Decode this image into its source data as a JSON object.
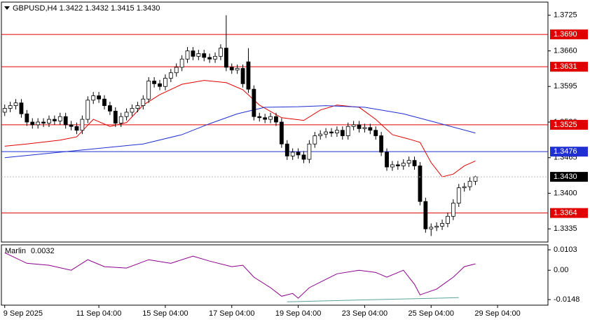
{
  "chart_data": {
    "type": "candlestick",
    "title": "GBPUSD,H4  1.3422 1.3432 1.3415 1.3430",
    "xlim": [
      -0.6,
      98.1
    ],
    "ylim": [
      1.3311,
      1.3749
    ],
    "yticks": [
      1.3725,
      {
        "value": 1.366,
        "label": "1.3660"
      },
      1.3595,
      {
        "value": 1.353,
        "label": "1.3530"
      },
      1.3465,
      {
        "value": 1.34,
        "label": "1.3400"
      },
      1.3335
    ],
    "xticks": [
      {
        "value": 0,
        "label": "9 Sep 2025"
      },
      {
        "value": 17,
        "label": "11 Sep 04:00"
      },
      {
        "value": 29,
        "label": "15 Sep 04:00"
      },
      {
        "value": 41,
        "label": "17 Sep 04:00"
      },
      {
        "value": 53,
        "label": "19 Sep 04:00"
      },
      {
        "value": 65,
        "label": "23 Sep 04:00"
      },
      {
        "value": 77,
        "label": "25 Sep 04:00"
      },
      {
        "value": 89,
        "label": "29 Sep 04:00"
      }
    ],
    "open": [
      1.3548,
      1.3555,
      1.356,
      1.3565,
      1.3545,
      1.353,
      1.3525,
      1.353,
      1.3528,
      1.3535,
      1.3532,
      1.354,
      1.3525,
      1.3522,
      1.3515,
      1.3535,
      1.357,
      1.3578,
      1.3572,
      1.356,
      1.355,
      1.3528,
      1.354,
      1.3548,
      1.3555,
      1.356,
      1.3572,
      1.3605,
      1.36,
      1.3595,
      1.361,
      1.362,
      1.363,
      1.3645,
      1.366,
      1.365,
      1.3655,
      1.3648,
      1.3645,
      1.365,
      1.3665,
      1.363,
      1.3625,
      1.3628,
      1.364,
      1.359,
      1.354,
      1.3538,
      1.3535,
      1.354,
      1.353,
      1.349,
      1.3468,
      1.3475,
      1.347,
      1.3462,
      1.349,
      1.3505,
      1.3508,
      1.3512,
      1.351,
      1.3515,
      1.3505,
      1.3522,
      1.3525,
      1.3518,
      1.352,
      1.3515,
      1.3505,
      1.3475,
      1.3448,
      1.3452,
      1.345,
      1.3455,
      1.346,
      1.345,
      1.3385,
      1.3335,
      1.3338,
      1.334,
      1.3345,
      1.3358,
      1.3382,
      1.341,
      1.3412,
      1.3422
    ],
    "high": [
      1.3562,
      1.3567,
      1.3572,
      1.3572,
      1.3552,
      1.3537,
      1.3537,
      1.3537,
      1.3542,
      1.3542,
      1.3547,
      1.3547,
      1.3532,
      1.3529,
      1.3542,
      1.3577,
      1.3585,
      1.3585,
      1.3579,
      1.3567,
      1.3557,
      1.3547,
      1.3555,
      1.3562,
      1.3567,
      1.3579,
      1.3612,
      1.3612,
      1.3607,
      1.3617,
      1.3627,
      1.3637,
      1.3652,
      1.3667,
      1.3667,
      1.3662,
      1.3662,
      1.3655,
      1.3657,
      1.3672,
      1.3725,
      1.3637,
      1.3635,
      1.3635,
      1.3665,
      1.3597,
      1.3547,
      1.3545,
      1.3547,
      1.3547,
      1.3537,
      1.3497,
      1.3482,
      1.3482,
      1.3477,
      1.3497,
      1.3512,
      1.3515,
      1.3519,
      1.3519,
      1.3522,
      1.3522,
      1.3529,
      1.3532,
      1.3532,
      1.3527,
      1.3527,
      1.3522,
      1.3512,
      1.3482,
      1.3459,
      1.3459,
      1.3462,
      1.3467,
      1.3467,
      1.3457,
      1.3392,
      1.3345,
      1.3347,
      1.3352,
      1.3365,
      1.3389,
      1.3417,
      1.3419,
      1.3429,
      1.3432
    ],
    "low": [
      1.3541,
      1.3548,
      1.3553,
      1.3538,
      1.3523,
      1.3518,
      1.3518,
      1.3521,
      1.3521,
      1.3525,
      1.3525,
      1.3518,
      1.3515,
      1.3508,
      1.3508,
      1.3528,
      1.3563,
      1.3565,
      1.3553,
      1.3543,
      1.3521,
      1.3521,
      1.3533,
      1.3541,
      1.3548,
      1.3553,
      1.3565,
      1.3593,
      1.3588,
      1.3588,
      1.3603,
      1.3613,
      1.3623,
      1.3638,
      1.3643,
      1.3643,
      1.3641,
      1.3638,
      1.3638,
      1.3643,
      1.3623,
      1.3618,
      1.3618,
      1.3593,
      1.3583,
      1.3533,
      1.3531,
      1.3528,
      1.3528,
      1.3523,
      1.3483,
      1.3461,
      1.3461,
      1.3463,
      1.3455,
      1.3455,
      1.3483,
      1.3498,
      1.3501,
      1.3503,
      1.3503,
      1.3498,
      1.3498,
      1.3515,
      1.3511,
      1.3511,
      1.3508,
      1.3498,
      1.3468,
      1.3441,
      1.3441,
      1.3443,
      1.3443,
      1.3448,
      1.3443,
      1.3378,
      1.3328,
      1.3322,
      1.3331,
      1.3333,
      1.3338,
      1.3351,
      1.3375,
      1.3403,
      1.3405,
      1.3415
    ],
    "close": [
      1.3555,
      1.356,
      1.3565,
      1.3545,
      1.353,
      1.3525,
      1.353,
      1.3528,
      1.3535,
      1.3532,
      1.354,
      1.3525,
      1.3522,
      1.3515,
      1.3535,
      1.357,
      1.3578,
      1.3572,
      1.356,
      1.355,
      1.3528,
      1.354,
      1.3548,
      1.3555,
      1.356,
      1.3572,
      1.3605,
      1.36,
      1.3595,
      1.361,
      1.362,
      1.363,
      1.3645,
      1.366,
      1.365,
      1.3655,
      1.3648,
      1.3645,
      1.365,
      1.3665,
      1.363,
      1.3625,
      1.3628,
      1.36,
      1.359,
      1.354,
      1.3538,
      1.3535,
      1.354,
      1.353,
      1.349,
      1.3468,
      1.3475,
      1.347,
      1.3462,
      1.349,
      1.3505,
      1.3508,
      1.3512,
      1.351,
      1.3515,
      1.3505,
      1.3522,
      1.3525,
      1.3518,
      1.352,
      1.3515,
      1.3505,
      1.3475,
      1.3448,
      1.3452,
      1.345,
      1.3455,
      1.346,
      1.345,
      1.3385,
      1.3335,
      1.3338,
      1.334,
      1.3345,
      1.3358,
      1.3382,
      1.341,
      1.3412,
      1.3422,
      1.343
    ],
    "moving_averages": [
      {
        "color": "#e00000",
        "x": [
          0,
          4,
          10,
          13,
          16,
          19,
          22,
          25,
          28,
          32,
          36,
          40,
          43,
          46,
          50,
          54,
          57,
          60,
          64,
          67,
          70,
          73,
          75,
          77,
          79,
          81,
          83,
          85
        ],
        "values": [
          1.3486,
          1.349,
          1.3497,
          1.3503,
          1.3535,
          1.3522,
          1.3529,
          1.3561,
          1.358,
          1.3599,
          1.3606,
          1.3602,
          1.3589,
          1.3561,
          1.3538,
          1.3533,
          1.3552,
          1.3561,
          1.3557,
          1.3535,
          1.3507,
          1.3499,
          1.3493,
          1.3456,
          1.343,
          1.3435,
          1.345,
          1.3459
        ]
      },
      {
        "color": "#1f2fd0",
        "x": [
          0,
          12,
          25,
          32,
          37,
          42,
          47,
          53,
          58,
          65,
          72,
          78,
          85
        ],
        "values": [
          1.3465,
          1.3477,
          1.349,
          1.3507,
          1.3527,
          1.3545,
          1.3557,
          1.3558,
          1.356,
          1.3557,
          1.3545,
          1.3529,
          1.351
        ]
      }
    ],
    "levels": [
      {
        "value": 1.369,
        "label": "1.3690",
        "color": "#e00000"
      },
      {
        "value": 1.3631,
        "label": "1.3631",
        "color": "#e00000"
      },
      {
        "value": 1.3525,
        "label": "1.3525",
        "color": "#e00000"
      },
      {
        "value": 1.3476,
        "label": "1.3476",
        "color": "#1f2fd0"
      },
      {
        "value": 1.3364,
        "label": "1.3364",
        "color": "#e00000"
      }
    ],
    "last_price": {
      "value": 1.343,
      "label": "1.3430"
    },
    "oscillator": {
      "name": "Marlin",
      "value_label": "0.0032",
      "color": "#8b008b",
      "y2lim": [
        -0.0176,
        0.0128
      ],
      "y2ticks": [
        0.0103,
        {
          "value": 0,
          "label": "0.00"
        },
        -0.0148
      ],
      "x": [
        0,
        4,
        8,
        12,
        15,
        18,
        22,
        26,
        30,
        34,
        37,
        41,
        43,
        45,
        48,
        50,
        52,
        53,
        55,
        58,
        60,
        64,
        67,
        69,
        72,
        74,
        75,
        78,
        81,
        83,
        85
      ],
      "values": [
        0.0088,
        0.0035,
        0.0025,
        0.0,
        0.0053,
        0.0018,
        0.0011,
        0.0053,
        0.0035,
        0.0071,
        0.0046,
        0.0018,
        0.0025,
        -0.0035,
        -0.0088,
        -0.0131,
        -0.0117,
        -0.0141,
        -0.0088,
        -0.0046,
        -0.0018,
        0.0,
        -0.0011,
        -0.0035,
        0.0,
        -0.0071,
        -0.0124,
        -0.0095,
        -0.0035,
        0.0018,
        0.0032
      ],
      "signal": {
        "color": "#5aa39a",
        "x": [
          51,
          82
        ],
        "values": [
          -0.0159,
          -0.0138
        ]
      }
    }
  }
}
